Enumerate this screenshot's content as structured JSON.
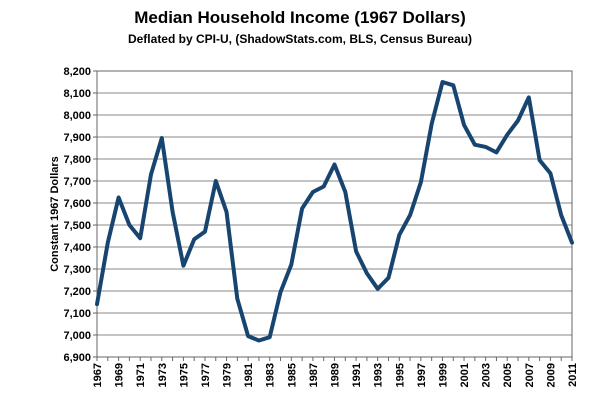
{
  "chart_data": {
    "type": "line",
    "title": "Median Household Income (1967 Dollars)",
    "subtitle": "Deflated by CPI-U, (ShadowStats.com, BLS, Census Bureau)",
    "xlabel": "",
    "ylabel": "Constant 1967 Dollars",
    "ylim": [
      6900,
      8200
    ],
    "yticks": [
      6900,
      7000,
      7100,
      7200,
      7300,
      7400,
      7500,
      7600,
      7700,
      7800,
      7900,
      8000,
      8100,
      8200
    ],
    "ytick_labels": [
      "6,900",
      "7,000",
      "7,100",
      "7,200",
      "7,300",
      "7,400",
      "7,500",
      "7,600",
      "7,700",
      "7,800",
      "7,900",
      "8,000",
      "8,100",
      "8,200"
    ],
    "xtick_labels": [
      "1967",
      "1969",
      "1971",
      "1973",
      "1975",
      "1977",
      "1979",
      "1981",
      "1983",
      "1985",
      "1987",
      "1989",
      "1991",
      "1993",
      "1995",
      "1997",
      "1999",
      "2001",
      "2003",
      "2005",
      "2007",
      "2009",
      "2011"
    ],
    "grid": true,
    "line_color": "#17456f",
    "series": [
      {
        "x": [
          1967,
          1968,
          1969,
          1970,
          1971,
          1972,
          1973,
          1974,
          1975,
          1976,
          1977,
          1978,
          1979,
          1980,
          1981,
          1982,
          1983,
          1984,
          1985,
          1986,
          1987,
          1988,
          1989,
          1990,
          1991,
          1992,
          1993,
          1994,
          1995,
          1996,
          1997,
          1998,
          1999,
          2000,
          2001,
          2002,
          2003,
          2004,
          2005,
          2006,
          2007,
          2008,
          2009,
          2010,
          2011
        ],
        "values": [
          7140,
          7420,
          7625,
          7500,
          7440,
          7730,
          7895,
          7560,
          7315,
          7435,
          7470,
          7700,
          7560,
          7165,
          6995,
          6975,
          6990,
          7195,
          7320,
          7575,
          7650,
          7675,
          7775,
          7650,
          7380,
          7280,
          7210,
          7260,
          7455,
          7545,
          7695,
          7960,
          8150,
          8135,
          7955,
          7865,
          7855,
          7830,
          7910,
          7975,
          8080,
          7795,
          7735,
          7545,
          7420
        ]
      }
    ]
  }
}
